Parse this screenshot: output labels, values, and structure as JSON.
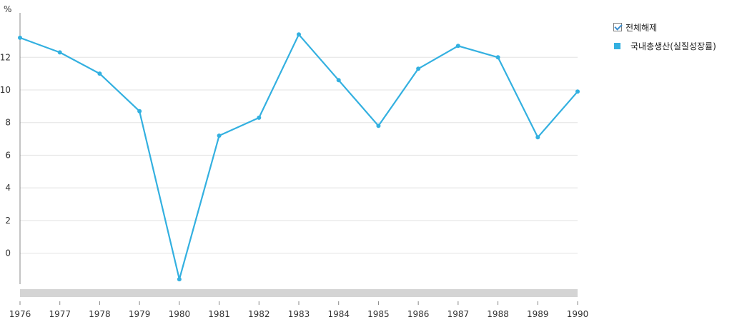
{
  "unit_label": "%",
  "legend": {
    "toggle_all_label": "전체해제",
    "series_label": "국내총생산(실질성장률)"
  },
  "colors": {
    "series": "#33b0e0",
    "grid": "#e3e3e3",
    "axis": "#888888",
    "scrollbar": "#d4d4d4"
  },
  "chart_data": {
    "type": "line",
    "x": [
      "1976",
      "1977",
      "1978",
      "1979",
      "1980",
      "1981",
      "1982",
      "1983",
      "1984",
      "1985",
      "1986",
      "1987",
      "1988",
      "1989",
      "1990"
    ],
    "series": [
      {
        "name": "국내총생산(실질성장률)",
        "values": [
          13.2,
          12.3,
          11.0,
          8.7,
          -1.6,
          7.2,
          8.3,
          13.4,
          10.6,
          7.8,
          11.3,
          12.7,
          12.0,
          7.1,
          9.9
        ]
      }
    ],
    "y_ticks": [
      0,
      2,
      4,
      6,
      8,
      10,
      12
    ],
    "ylim": [
      -1.9,
      14.2
    ],
    "grid": true,
    "legend_position": "top-right"
  }
}
